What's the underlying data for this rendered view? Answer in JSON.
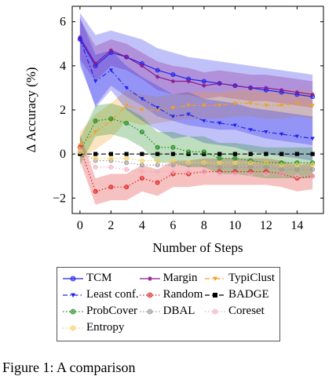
{
  "chart_data": {
    "type": "line",
    "title": "",
    "xlabel": "Number of Steps",
    "ylabel": "Δ Accuracy (%)",
    "xlim": [
      -0.5,
      15.7
    ],
    "ylim": [
      -2.7,
      6.7
    ],
    "xticks": [
      0,
      2,
      4,
      6,
      8,
      10,
      12,
      14
    ],
    "yticks": [
      -2,
      0,
      2,
      4,
      6
    ],
    "grid": false,
    "legend_position": "below",
    "series": [
      {
        "name": "TCM",
        "color": "#2222ee",
        "style": "solid",
        "marker": "circle",
        "x": [
          0,
          1,
          2,
          3,
          4,
          5,
          6,
          7,
          8,
          9,
          10,
          11,
          12,
          13,
          14,
          15
        ],
        "y": [
          5.2,
          4.0,
          4.6,
          4.4,
          4.1,
          3.8,
          3.6,
          3.4,
          3.3,
          3.2,
          3.1,
          3.0,
          2.9,
          2.8,
          2.7,
          2.6
        ],
        "band": [
          [
            6.4,
            4.0
          ],
          [
            5.4,
            2.2
          ],
          [
            5.6,
            3.1
          ],
          [
            5.4,
            2.6
          ],
          [
            5.2,
            2.2
          ],
          [
            4.8,
            1.7
          ],
          [
            4.6,
            1.5
          ],
          [
            4.4,
            1.3
          ],
          [
            4.3,
            1.2
          ],
          [
            4.2,
            1.1
          ],
          [
            4.1,
            1.1
          ],
          [
            4.0,
            0.9
          ],
          [
            3.9,
            0.7
          ],
          [
            3.8,
            0.6
          ],
          [
            3.7,
            0.5
          ],
          [
            3.6,
            0.4
          ]
        ]
      },
      {
        "name": "Margin",
        "color": "#8a1a8a",
        "style": "solid",
        "marker": "star",
        "x": [
          0,
          1,
          2,
          3,
          4,
          5,
          6,
          7,
          8,
          9,
          10,
          11,
          12,
          13,
          14,
          15
        ],
        "y": [
          5.3,
          4.1,
          4.7,
          4.4,
          4.0,
          3.5,
          3.3,
          3.3,
          3.1,
          3.2,
          3.1,
          3.0,
          3.0,
          2.9,
          2.8,
          2.7
        ],
        "band": [
          [
            6.1,
            4.3
          ],
          [
            4.9,
            3.3
          ],
          [
            5.2,
            4.0
          ],
          [
            5.0,
            3.8
          ],
          [
            4.6,
            3.4
          ],
          [
            4.2,
            2.9
          ],
          [
            4.0,
            2.7
          ],
          [
            3.9,
            2.7
          ],
          [
            3.7,
            2.5
          ],
          [
            3.8,
            2.6
          ],
          [
            3.7,
            2.5
          ],
          [
            3.6,
            2.4
          ],
          [
            3.6,
            2.4
          ],
          [
            3.5,
            2.3
          ],
          [
            3.4,
            2.2
          ],
          [
            3.3,
            2.1
          ]
        ]
      },
      {
        "name": "TypiClust",
        "color": "#f0a020",
        "style": "dashdot",
        "marker": "triangle-down",
        "x": [
          0,
          1,
          2,
          3,
          4,
          5,
          6,
          7,
          8,
          9,
          10,
          11,
          12,
          13,
          14,
          15
        ],
        "y": [
          0.4,
          1.0,
          1.5,
          2.2,
          2.0,
          2.0,
          2.1,
          2.2,
          2.2,
          2.2,
          2.3,
          2.3,
          2.2,
          2.2,
          2.3,
          2.2
        ],
        "band": [
          [
            1.0,
            -0.2
          ],
          [
            1.8,
            0.2
          ],
          [
            2.3,
            0.7
          ],
          [
            2.9,
            1.5
          ],
          [
            2.7,
            1.3
          ],
          [
            2.6,
            1.4
          ],
          [
            2.7,
            1.5
          ],
          [
            2.8,
            1.6
          ],
          [
            2.8,
            1.6
          ],
          [
            2.8,
            1.6
          ],
          [
            2.9,
            1.7
          ],
          [
            2.9,
            1.7
          ],
          [
            2.8,
            1.6
          ],
          [
            2.8,
            1.6
          ],
          [
            2.9,
            1.7
          ],
          [
            2.8,
            1.6
          ]
        ]
      },
      {
        "name": "Least conf.",
        "color": "#2222ee",
        "style": "dashdot",
        "marker": "triangle-down",
        "x": [
          0,
          1,
          2,
          3,
          4,
          5,
          6,
          7,
          8,
          9,
          10,
          11,
          12,
          13,
          14,
          15
        ],
        "y": [
          5.2,
          3.3,
          3.8,
          3.0,
          2.5,
          2.1,
          1.7,
          1.8,
          1.5,
          1.4,
          1.3,
          1.1,
          1.0,
          0.9,
          0.8,
          0.7
        ],
        "band": [
          [
            6.2,
            4.2
          ],
          [
            4.5,
            2.1
          ],
          [
            4.7,
            2.9
          ],
          [
            4.0,
            2.0
          ],
          [
            3.5,
            1.5
          ],
          [
            3.1,
            1.1
          ],
          [
            2.7,
            0.7
          ],
          [
            2.8,
            0.8
          ],
          [
            2.5,
            0.5
          ],
          [
            2.4,
            0.4
          ],
          [
            2.3,
            0.3
          ],
          [
            2.1,
            0.1
          ],
          [
            2.0,
            0.0
          ],
          [
            1.9,
            -0.1
          ],
          [
            1.8,
            -0.2
          ],
          [
            1.7,
            -0.3
          ]
        ]
      },
      {
        "name": "Random",
        "color": "#e02020",
        "style": "dotted",
        "marker": "circle",
        "x": [
          0,
          1,
          2,
          3,
          4,
          5,
          6,
          7,
          8,
          9,
          10,
          11,
          12,
          13,
          14,
          15
        ],
        "y": [
          0.3,
          -1.7,
          -1.5,
          -1.5,
          -1.1,
          -1.3,
          -0.9,
          -0.9,
          -0.8,
          -0.8,
          -0.8,
          -0.8,
          -0.8,
          -0.9,
          -1.1,
          -1.0
        ],
        "band": [
          [
            0.9,
            -0.3
          ],
          [
            -1.1,
            -2.3
          ],
          [
            -0.9,
            -2.1
          ],
          [
            -0.9,
            -2.1
          ],
          [
            -0.5,
            -1.7
          ],
          [
            -0.7,
            -1.9
          ],
          [
            -0.3,
            -1.5
          ],
          [
            -0.3,
            -1.5
          ],
          [
            -0.2,
            -1.4
          ],
          [
            -0.2,
            -1.4
          ],
          [
            -0.2,
            -1.4
          ],
          [
            -0.2,
            -1.4
          ],
          [
            -0.2,
            -1.4
          ],
          [
            -0.3,
            -1.5
          ],
          [
            -0.5,
            -1.7
          ],
          [
            -0.4,
            -1.6
          ]
        ]
      },
      {
        "name": "BADGE",
        "color": "#000000",
        "style": "dashed",
        "marker": "square",
        "x": [
          0,
          1,
          2,
          3,
          4,
          5,
          6,
          7,
          8,
          9,
          10,
          11,
          12,
          13,
          14,
          15
        ],
        "y": [
          0,
          0,
          0,
          0,
          0,
          0,
          0,
          0,
          0,
          0,
          0,
          0,
          0,
          0,
          0,
          0
        ]
      },
      {
        "name": "ProbCover",
        "color": "#1a8a1a",
        "style": "dotted",
        "marker": "circle",
        "x": [
          0,
          1,
          2,
          3,
          4,
          5,
          6,
          7,
          8,
          9,
          10,
          11,
          12,
          13,
          14,
          15
        ],
        "y": [
          0.1,
          1.5,
          1.6,
          1.4,
          1.0,
          0.3,
          0.3,
          0.1,
          0.1,
          -0.2,
          -0.2,
          -0.3,
          -0.4,
          -0.4,
          -0.4,
          -0.4
        ],
        "band": [
          [
            0.7,
            -0.5
          ],
          [
            2.2,
            0.8
          ],
          [
            2.3,
            0.9
          ],
          [
            2.1,
            0.7
          ],
          [
            1.7,
            0.3
          ],
          [
            1.0,
            -0.4
          ],
          [
            1.0,
            -0.4
          ],
          [
            0.8,
            -0.6
          ],
          [
            0.8,
            -0.6
          ],
          [
            0.5,
            -0.9
          ],
          [
            0.5,
            -0.9
          ],
          [
            0.4,
            -1.0
          ],
          [
            0.3,
            -1.1
          ],
          [
            0.3,
            -1.1
          ],
          [
            0.3,
            -1.1
          ],
          [
            0.3,
            -1.1
          ]
        ]
      },
      {
        "name": "DBAL",
        "color": "#999999",
        "style": "dotted",
        "marker": "circle",
        "x": [
          0,
          1,
          2,
          3,
          4,
          5,
          6,
          7,
          8,
          9,
          10,
          11,
          12,
          13,
          14,
          15
        ],
        "y": [
          0.1,
          -0.3,
          -0.3,
          -0.4,
          -0.5,
          -0.5,
          -0.5,
          -0.5,
          -0.5,
          -0.6,
          -0.6,
          -0.6,
          -0.6,
          -0.7,
          -0.7,
          -0.7
        ]
      },
      {
        "name": "Coreset",
        "color": "#f0b0c0",
        "style": "dotted",
        "marker": "circle",
        "x": [
          0,
          1,
          2,
          3,
          4,
          5,
          6,
          7,
          8,
          9,
          10,
          11,
          12,
          13,
          14,
          15
        ],
        "y": [
          0.2,
          -0.6,
          -0.6,
          -0.7,
          -0.8,
          -0.8,
          -0.8,
          -0.8,
          -0.8,
          -0.9,
          -0.9,
          -0.9,
          -0.9,
          -0.9,
          -1.0,
          -1.0
        ]
      },
      {
        "name": "Entropy",
        "color": "#f5d060",
        "style": "dotted",
        "marker": "circle",
        "x": [
          0,
          1,
          2,
          3,
          4,
          5,
          6,
          7,
          8,
          9,
          10,
          11,
          12,
          13,
          14,
          15
        ],
        "y": [
          0.1,
          -0.2,
          -0.2,
          -0.2,
          -0.3,
          -0.3,
          -0.3,
          -0.4,
          -0.4,
          -0.4,
          -0.4,
          -0.4,
          -0.4,
          -0.5,
          -0.5,
          -0.5
        ]
      }
    ]
  },
  "caption": "Figure 1:  A comparison"
}
